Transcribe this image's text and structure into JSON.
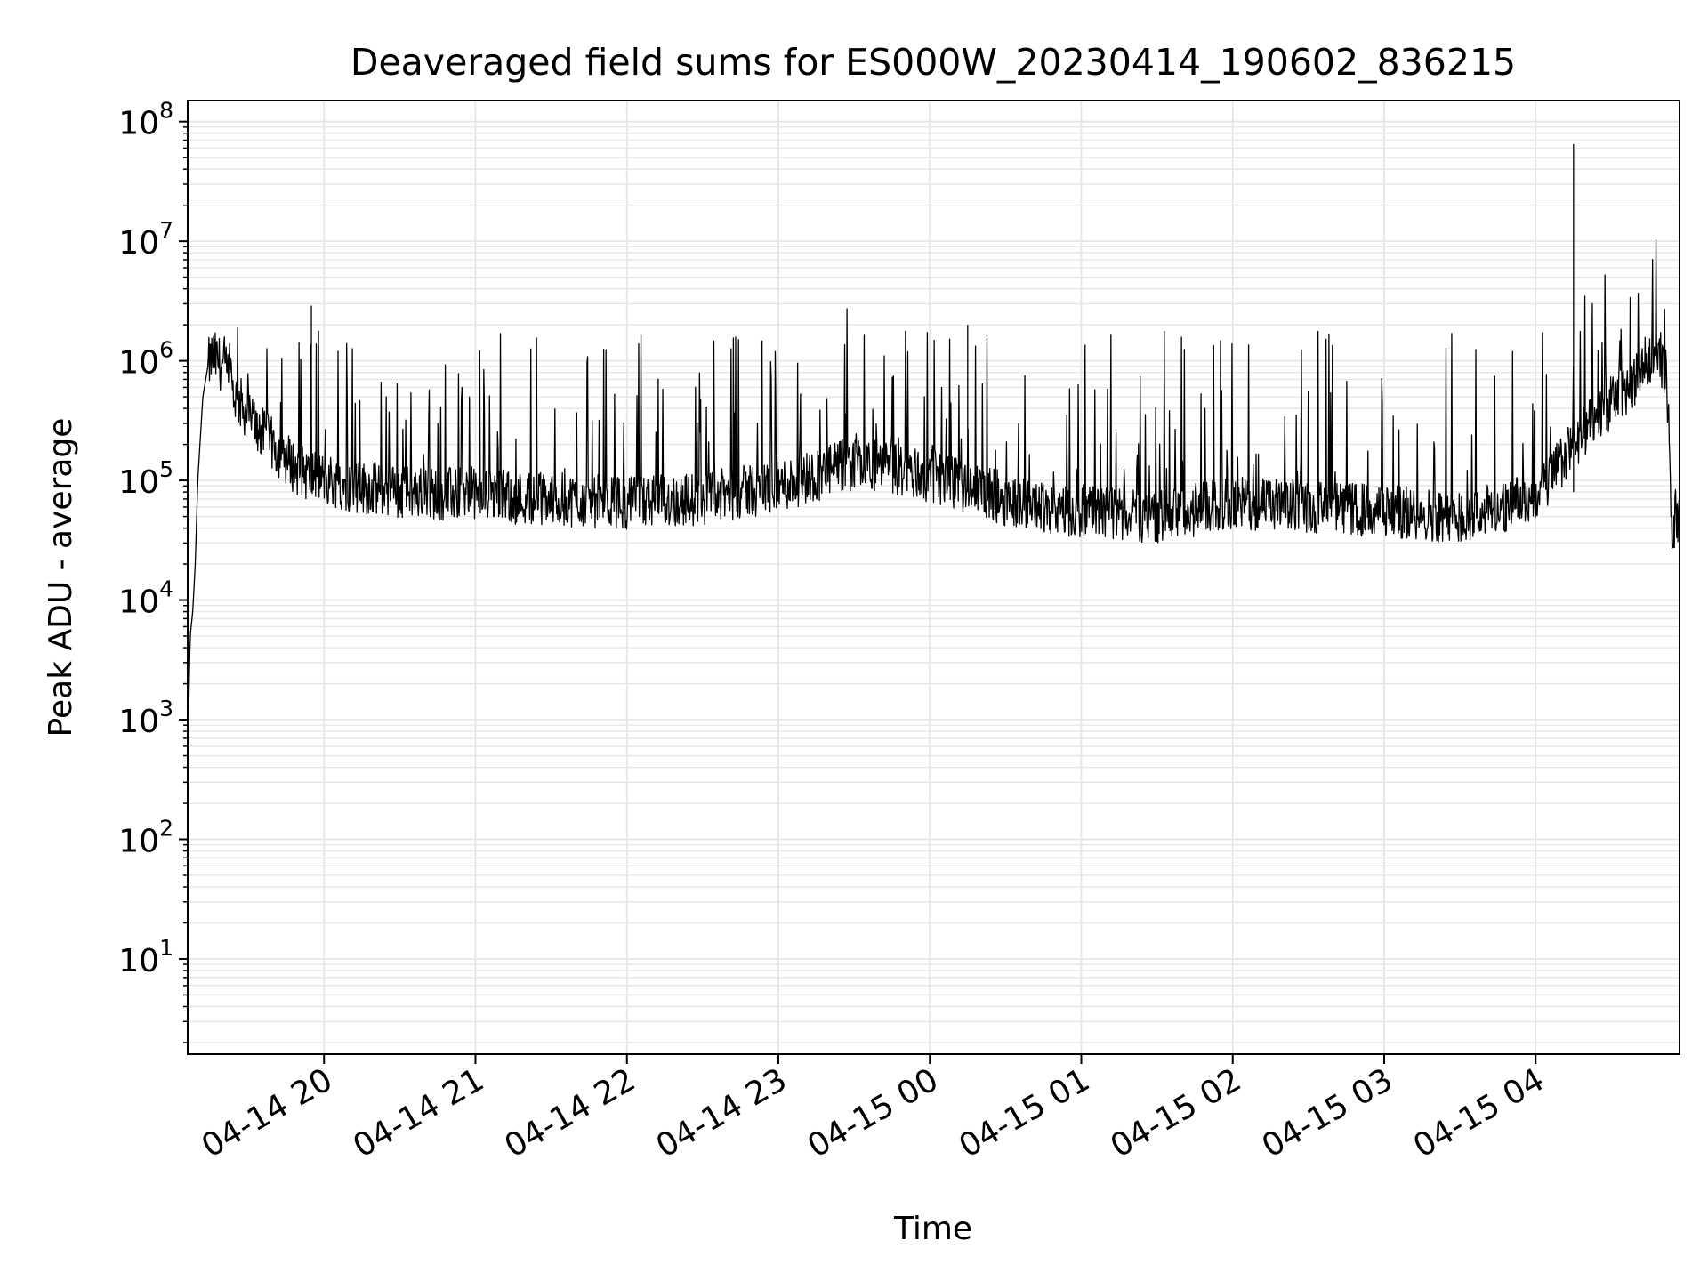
{
  "chart_data": {
    "type": "line",
    "title": "Deaveraged field sums for ES000W_20230414_190602_836215",
    "xlabel": "Time",
    "ylabel": "Peak ADU - average",
    "y_scale": "log",
    "ylim": [
      1.6,
      150000000
    ],
    "xlim": [
      "2023-04-14 19:06",
      "2023-04-15 04:57"
    ],
    "grid": "on (major and minor)",
    "legend": "none",
    "x_tick_labels": [
      "04-14 20",
      "04-14 21",
      "04-14 22",
      "04-14 23",
      "04-15 00",
      "04-15 01",
      "04-15 02",
      "04-15 03",
      "04-15 04"
    ],
    "x_ticks": [
      "2023-04-14 20:00",
      "2023-04-14 21:00",
      "2023-04-14 22:00",
      "2023-04-14 23:00",
      "2023-04-15 00:00",
      "2023-04-15 01:00",
      "2023-04-15 02:00",
      "2023-04-15 03:00",
      "2023-04-15 04:00"
    ],
    "y_tick_exponents": [
      "1",
      "2",
      "3",
      "4",
      "5",
      "6",
      "7",
      "8"
    ],
    "series": [
      {
        "color": "#000000",
        "x": [
          "2023-04-14 19:06",
          "2023-04-14 19:07",
          "2023-04-14 19:08",
          "2023-04-14 19:09",
          "2023-04-14 19:10",
          "2023-04-14 19:12",
          "2023-04-14 19:14",
          "2023-04-14 19:16",
          "2023-04-14 19:20",
          "2023-04-14 19:25",
          "2023-04-14 19:35",
          "2023-04-14 19:50",
          "2023-04-14 20:10",
          "2023-04-14 20:30",
          "2023-04-14 21:00",
          "2023-04-14 21:30",
          "2023-04-14 22:00",
          "2023-04-14 22:30",
          "2023-04-14 23:00",
          "2023-04-14 23:30",
          "2023-04-15 00:00",
          "2023-04-15 00:30",
          "2023-04-15 01:00",
          "2023-04-15 01:30",
          "2023-04-15 02:00",
          "2023-04-15 02:30",
          "2023-04-15 03:00",
          "2023-04-15 03:30",
          "2023-04-15 04:00",
          "2023-04-15 04:15",
          "2023-04-15 04:30",
          "2023-04-15 04:40",
          "2023-04-15 04:48",
          "2023-04-15 04:52",
          "2023-04-15 04:54",
          "2023-04-15 04:57"
        ],
        "y": [
          500,
          5000,
          8000,
          20000,
          100000,
          500000,
          900000,
          1100000,
          900000,
          500000,
          250000,
          120000,
          90000,
          80000,
          75000,
          70000,
          65000,
          70000,
          90000,
          140000,
          110000,
          70000,
          55000,
          50000,
          65000,
          60000,
          55000,
          50000,
          70000,
          200000,
          450000,
          700000,
          1400000,
          700000,
          40000,
          60000
        ]
      }
    ],
    "spikes": [
      {
        "x": "2023-04-14 19:55",
        "y": 2900000
      },
      {
        "x": "2023-04-15 00:15",
        "y": 2000000
      },
      {
        "x": "2023-04-15 04:15",
        "y": 65000000
      }
    ]
  }
}
